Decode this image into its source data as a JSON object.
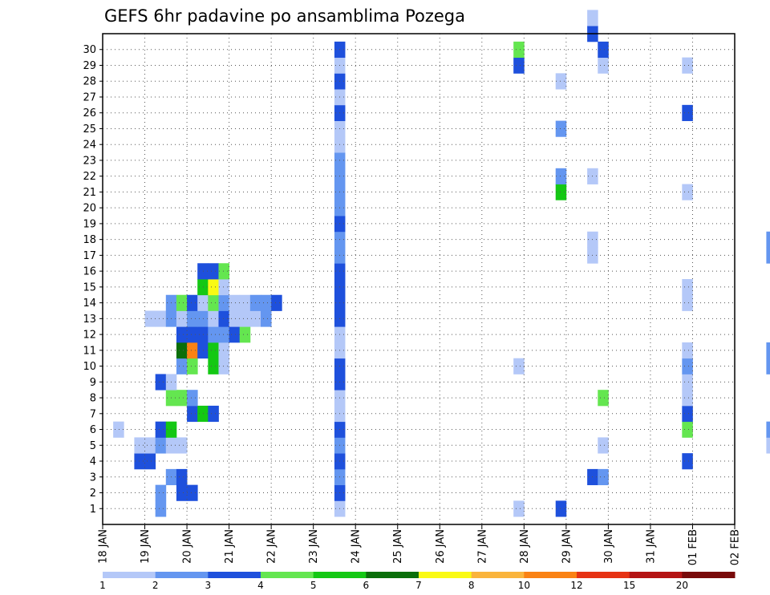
{
  "chart_data": {
    "type": "heatmap",
    "title": "GEFS 6hr padavine po ansamblima Pozega",
    "y_labels": [
      "1",
      "2",
      "3",
      "4",
      "5",
      "6",
      "7",
      "8",
      "9",
      "10",
      "11",
      "12",
      "13",
      "14",
      "15",
      "16",
      "17",
      "18",
      "19",
      "20",
      "21",
      "22",
      "23",
      "24",
      "25",
      "26",
      "27",
      "28",
      "29",
      "30"
    ],
    "x_labels": [
      "18 JAN",
      "19 JAN",
      "20 JAN",
      "21 JAN",
      "22 JAN",
      "23 JAN",
      "24 JAN",
      "25 JAN",
      "26 JAN",
      "27 JAN",
      "28 JAN",
      "29 JAN",
      "30 JAN",
      "31 JAN",
      "01 FEB",
      "02 FEB"
    ],
    "x_range_steps": 60,
    "steps_per_day": 4,
    "grid": true,
    "colorbar": {
      "ticks": [
        "1",
        "2",
        "3",
        "4",
        "5",
        "6",
        "7",
        "8",
        "10",
        "12",
        "15",
        "20"
      ],
      "colors": [
        "#b4c8f8",
        "#6496f0",
        "#1e50dc",
        "#64e650",
        "#14c814",
        "#0a6e0a",
        "#fafa14",
        "#fab43c",
        "#fa8214",
        "#e63214",
        "#b41414",
        "#780a0a"
      ]
    },
    "cells": [
      [
        5,
        1,
        2
      ],
      [
        5,
        2,
        2
      ],
      [
        7,
        2,
        3
      ],
      [
        8,
        2,
        3
      ],
      [
        6,
        3,
        2
      ],
      [
        7,
        3,
        3
      ],
      [
        3,
        4,
        3
      ],
      [
        4,
        4,
        3
      ],
      [
        3,
        5,
        1
      ],
      [
        4,
        5,
        1
      ],
      [
        5,
        5,
        2
      ],
      [
        6,
        5,
        1
      ],
      [
        7,
        5,
        1
      ],
      [
        1,
        6,
        1
      ],
      [
        5,
        6,
        3
      ],
      [
        6,
        6,
        5
      ],
      [
        8,
        7,
        3
      ],
      [
        9,
        7,
        5
      ],
      [
        10,
        7,
        3
      ],
      [
        6,
        8,
        4
      ],
      [
        7,
        8,
        4
      ],
      [
        8,
        8,
        2
      ],
      [
        5,
        9,
        3
      ],
      [
        6,
        9,
        1
      ],
      [
        7,
        10,
        2
      ],
      [
        8,
        10,
        4
      ],
      [
        10,
        10,
        5
      ],
      [
        11,
        10,
        1
      ],
      [
        7,
        11,
        6
      ],
      [
        8,
        11,
        9
      ],
      [
        9,
        11,
        3
      ],
      [
        10,
        11,
        5
      ],
      [
        11,
        11,
        1
      ],
      [
        7,
        12,
        3
      ],
      [
        8,
        12,
        3
      ],
      [
        9,
        12,
        3
      ],
      [
        10,
        12,
        2
      ],
      [
        11,
        12,
        2
      ],
      [
        12,
        12,
        3
      ],
      [
        13,
        12,
        4
      ],
      [
        4,
        13,
        1
      ],
      [
        5,
        13,
        1
      ],
      [
        6,
        13,
        2
      ],
      [
        7,
        13,
        1
      ],
      [
        8,
        13,
        2
      ],
      [
        9,
        13,
        2
      ],
      [
        10,
        13,
        1
      ],
      [
        11,
        13,
        3
      ],
      [
        12,
        13,
        1
      ],
      [
        13,
        13,
        1
      ],
      [
        14,
        13,
        1
      ],
      [
        15,
        13,
        2
      ],
      [
        6,
        14,
        2
      ],
      [
        7,
        14,
        4
      ],
      [
        8,
        14,
        3
      ],
      [
        9,
        14,
        1
      ],
      [
        10,
        14,
        4
      ],
      [
        11,
        14,
        2
      ],
      [
        12,
        14,
        1
      ],
      [
        13,
        14,
        1
      ],
      [
        14,
        14,
        2
      ],
      [
        15,
        14,
        2
      ],
      [
        16,
        14,
        3
      ],
      [
        9,
        15,
        5
      ],
      [
        10,
        15,
        7
      ],
      [
        11,
        15,
        1
      ],
      [
        9,
        16,
        3
      ],
      [
        10,
        16,
        3
      ],
      [
        11,
        16,
        4
      ]
    ],
    "cells2": [
      [
        22,
        1,
        1
      ],
      [
        22,
        2,
        3
      ],
      [
        22,
        3,
        2
      ],
      [
        22,
        4,
        3
      ],
      [
        22,
        5,
        2
      ],
      [
        22,
        6,
        3
      ],
      [
        22,
        7,
        1
      ],
      [
        22,
        8,
        1
      ],
      [
        22,
        9,
        3
      ],
      [
        22,
        10,
        3
      ],
      [
        22,
        11,
        1
      ],
      [
        22,
        12,
        1
      ],
      [
        22,
        13,
        3
      ],
      [
        22,
        14,
        3
      ],
      [
        22,
        15,
        3
      ],
      [
        22,
        16,
        3
      ],
      [
        22,
        17,
        2
      ],
      [
        22,
        18,
        2
      ],
      [
        22,
        19,
        3
      ],
      [
        22,
        20,
        2
      ],
      [
        22,
        21,
        2
      ],
      [
        22,
        22,
        2
      ],
      [
        22,
        23,
        2
      ],
      [
        22,
        24,
        1
      ],
      [
        22,
        25,
        1
      ],
      [
        22,
        26,
        3
      ],
      [
        22,
        27,
        1
      ],
      [
        22,
        28,
        3
      ],
      [
        22,
        29,
        1
      ],
      [
        22,
        30,
        3
      ],
      [
        39,
        1,
        1
      ],
      [
        39,
        10,
        1
      ],
      [
        39,
        29,
        3
      ],
      [
        39,
        30,
        4
      ],
      [
        39,
        34,
        4
      ],
      [
        39,
        43,
        1
      ],
      [
        39,
        47,
        2
      ],
      [
        43,
        1,
        3
      ],
      [
        43,
        21,
        5
      ],
      [
        43,
        22,
        2
      ],
      [
        43,
        25,
        2
      ],
      [
        43,
        28,
        1
      ],
      [
        43,
        44,
        1
      ],
      [
        43,
        45,
        2
      ],
      [
        46,
        3,
        3
      ],
      [
        46,
        17,
        1
      ],
      [
        46,
        18,
        1
      ],
      [
        46,
        22,
        1
      ],
      [
        46,
        31,
        3
      ],
      [
        46,
        32,
        1
      ],
      [
        46,
        44,
        1
      ],
      [
        47,
        3,
        2
      ],
      [
        47,
        5,
        1
      ],
      [
        47,
        8,
        4
      ],
      [
        47,
        29,
        1
      ],
      [
        47,
        30,
        3
      ],
      [
        47,
        37,
        1
      ]
    ],
    "cells3": [
      [
        55,
        4,
        3
      ],
      [
        55,
        6,
        4
      ],
      [
        55,
        7,
        3
      ],
      [
        55,
        8,
        1
      ],
      [
        55,
        9,
        1
      ],
      [
        55,
        10,
        2
      ],
      [
        55,
        11,
        1
      ],
      [
        55,
        14,
        1
      ],
      [
        55,
        15,
        1
      ],
      [
        55,
        21,
        1
      ],
      [
        55,
        26,
        3
      ],
      [
        55,
        29,
        1
      ],
      [
        63,
        5,
        1
      ],
      [
        63,
        6,
        2
      ],
      [
        63,
        10,
        2
      ],
      [
        63,
        11,
        2
      ],
      [
        63,
        17,
        2
      ],
      [
        63,
        18,
        2
      ],
      [
        66,
        18,
        1
      ],
      [
        66,
        19,
        2
      ],
      [
        66,
        20,
        5
      ],
      [
        66,
        21,
        1
      ],
      [
        66,
        22,
        1
      ],
      [
        66,
        23,
        1
      ],
      [
        66,
        24,
        1
      ],
      [
        66,
        25,
        1
      ],
      [
        66,
        26,
        2
      ],
      [
        66,
        27,
        2
      ],
      [
        66,
        28,
        1
      ],
      [
        66,
        29,
        2
      ],
      [
        84,
        7,
        1
      ],
      [
        84,
        8,
        2
      ],
      [
        84,
        19,
        2
      ],
      [
        84,
        20,
        2
      ],
      [
        84,
        21,
        6
      ],
      [
        84,
        22,
        3
      ],
      [
        84,
        23,
        2
      ],
      [
        84,
        24,
        2
      ],
      [
        84,
        25,
        2
      ],
      [
        84,
        26,
        2
      ],
      [
        84,
        27,
        2
      ],
      [
        84,
        28,
        2
      ],
      [
        89,
        11,
        2
      ],
      [
        89,
        12,
        1
      ],
      [
        89,
        13,
        2
      ],
      [
        89,
        14,
        1
      ],
      [
        89,
        15,
        5
      ],
      [
        89,
        16,
        2
      ],
      [
        89,
        17,
        3
      ],
      [
        89,
        18,
        3
      ],
      [
        89,
        19,
        1
      ],
      [
        89,
        24,
        2
      ],
      [
        89,
        25,
        2
      ],
      [
        89,
        26,
        1
      ],
      [
        89,
        27,
        1
      ],
      [
        89,
        28,
        3
      ],
      [
        89,
        29,
        1
      ],
      [
        89,
        30,
        1
      ],
      [
        89,
        31,
        2
      ],
      [
        89,
        32,
        1
      ],
      [
        89,
        33,
        2
      ]
    ]
  }
}
